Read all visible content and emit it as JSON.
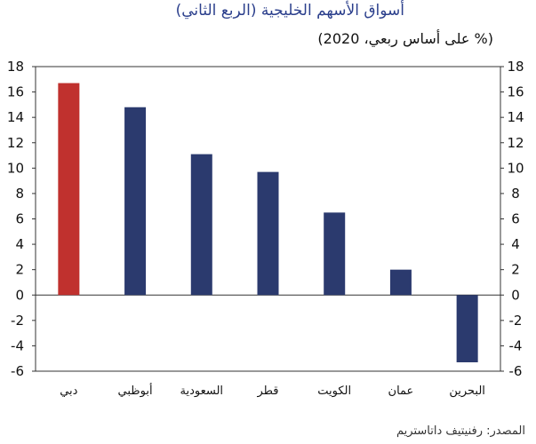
{
  "title": "أسواق الأسهم الخليجية (الربع الثاني)",
  "subtitle": "(% على أساس ربعي، 2020)",
  "source": "المصدر: رفنيتيف داتاستريم",
  "colors": {
    "highlight": "#c0312e",
    "default": "#2b3a6e",
    "axis": "#333333",
    "grid": "#bdbdbd"
  },
  "chart_data": {
    "type": "bar",
    "categories": [
      "دبي",
      "أبوظبي",
      "السعودية",
      "قطر",
      "الكويت",
      "عمان",
      "البحرين"
    ],
    "values": [
      16.7,
      14.8,
      11.1,
      9.7,
      6.5,
      2.0,
      -5.3
    ],
    "highlight_index": 0,
    "ylim": [
      -6,
      18
    ],
    "yticks": [
      18,
      16,
      14,
      12,
      10,
      8,
      6,
      4,
      2,
      0,
      -2,
      -4,
      -6
    ],
    "yaxis": "both sides",
    "grid": false
  }
}
